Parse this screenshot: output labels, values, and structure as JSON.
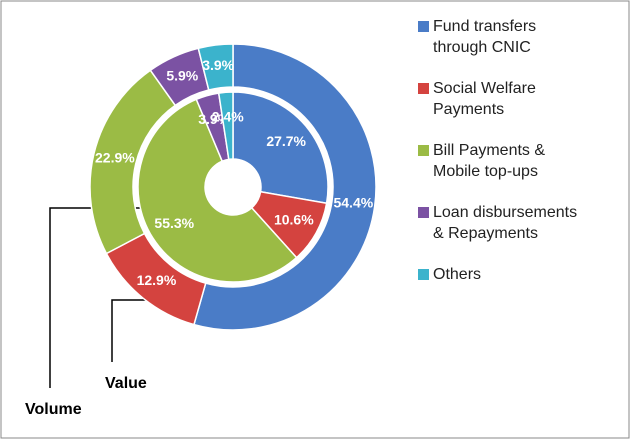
{
  "chart_data": {
    "type": "donut",
    "categories": [
      "Fund transfers through CNIC",
      "Social Welfare Payments",
      "Bill Payments & Mobile top-ups",
      "Loan disbursements & Repayments",
      "Others"
    ],
    "colors": [
      "#4a7cc7",
      "#d4433f",
      "#9bbb45",
      "#7b52a3",
      "#3bb3cc"
    ],
    "series": [
      {
        "name": "Value",
        "values": [
          54.4,
          12.9,
          22.9,
          5.9,
          3.9
        ],
        "value_labels": [
          "54.4%",
          "12.9%",
          "22.9%",
          "5.9%",
          "3.9%"
        ]
      },
      {
        "name": "Volume",
        "values": [
          27.7,
          10.6,
          55.3,
          3.9,
          2.4
        ],
        "value_labels": [
          "27.7%",
          "10.6%",
          "55.3%",
          "3.9%",
          "2.4%"
        ]
      }
    ],
    "legend": "right"
  }
}
